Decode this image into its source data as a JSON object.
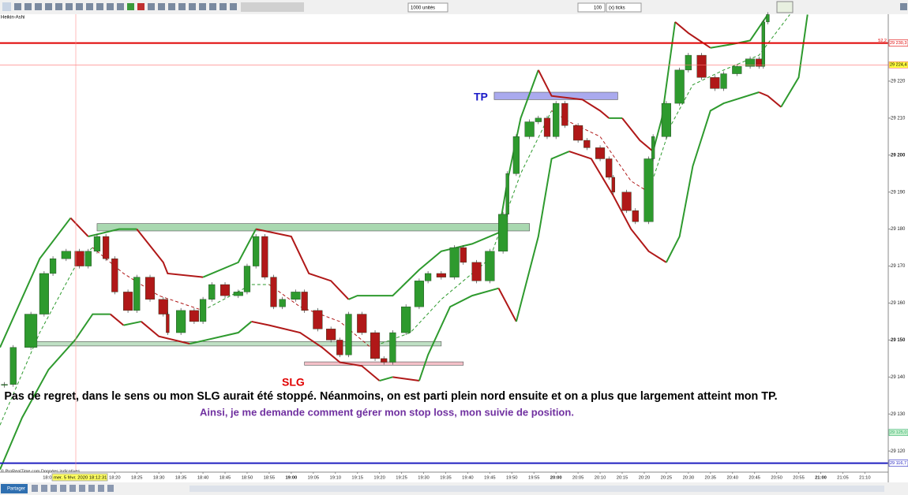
{
  "toolbar": {
    "units": "1000 unités",
    "ticks_value": "100",
    "ticks_unit": "(x) ticks"
  },
  "footer": {
    "share": "Partager"
  },
  "chart_data": {
    "type": "candlestick",
    "subtitle": "Heikin-Ashi",
    "source": "© ProRealTime.com Données indicatives",
    "cursor_label": "mer. 5 févr. 2020 18:12:31",
    "annotations": [
      "TP",
      "SLG",
      "Pas de regret, dans le sens ou mon SLG aurait été stoppé. Néanmoins, on est parti plein nord ensuite et on a plus que largement atteint mon TP.",
      "Ainsi, je me demande comment gérer mon stop loss, mon suivie de position."
    ],
    "annotation_colors": [
      "#1a1ac8",
      "#e00000",
      "#000000",
      "#7030a0"
    ],
    "up_color": "#2e9a2e",
    "down_color": "#b01818",
    "xlim": [
      -6,
      195.3
    ],
    "ylim": [
      29114.5,
      29238.1
    ],
    "xticks": [
      {
        "value": 5,
        "label": "18:05"
      },
      {
        "value": 20,
        "label": "18:20"
      },
      {
        "value": 25,
        "label": "18:25"
      },
      {
        "value": 30,
        "label": "18:30"
      },
      {
        "value": 35,
        "label": "18:35"
      },
      {
        "value": 40,
        "label": "18:40"
      },
      {
        "value": 45,
        "label": "18:45"
      },
      {
        "value": 50,
        "label": "18:50"
      },
      {
        "value": 55,
        "label": "18:55"
      },
      {
        "value": 60,
        "label": "19:00"
      },
      {
        "value": 65,
        "label": "19:05"
      },
      {
        "value": 70,
        "label": "19:10"
      },
      {
        "value": 75,
        "label": "19:15"
      },
      {
        "value": 80,
        "label": "19:20"
      },
      {
        "value": 85,
        "label": "19:25"
      },
      {
        "value": 90,
        "label": "19:30"
      },
      {
        "value": 95,
        "label": "19:35"
      },
      {
        "value": 100,
        "label": "19:40"
      },
      {
        "value": 105,
        "label": "19:45"
      },
      {
        "value": 110,
        "label": "19:50"
      },
      {
        "value": 115,
        "label": "19:55"
      },
      {
        "value": 120,
        "label": "20:00"
      },
      {
        "value": 125,
        "label": "20:05"
      },
      {
        "value": 130,
        "label": "20:10"
      },
      {
        "value": 135,
        "label": "20:15"
      },
      {
        "value": 140,
        "label": "20:20"
      },
      {
        "value": 145,
        "label": "20:25"
      },
      {
        "value": 150,
        "label": "20:30"
      },
      {
        "value": 155,
        "label": "20:35"
      },
      {
        "value": 160,
        "label": "20:40"
      },
      {
        "value": 165,
        "label": "20:45"
      },
      {
        "value": 170,
        "label": "20:50"
      },
      {
        "value": 175,
        "label": "20:55"
      },
      {
        "value": 180,
        "label": "21:00"
      },
      {
        "value": 185,
        "label": "21:05"
      },
      {
        "value": 190,
        "label": "21:10"
      }
    ],
    "yticks": [
      {
        "value": 29120,
        "label": "29 120"
      },
      {
        "value": 29130,
        "label": "29 130"
      },
      {
        "value": 29140,
        "label": "29 140"
      },
      {
        "value": 29150,
        "label": "29 150"
      },
      {
        "value": 29160,
        "label": "29 160"
      },
      {
        "value": 29170,
        "label": "29 170"
      },
      {
        "value": 29180,
        "label": "29 180"
      },
      {
        "value": 29190,
        "label": "29 190"
      },
      {
        "value": 29200,
        "label": "29 200"
      },
      {
        "value": 29210,
        "label": "29 210"
      },
      {
        "value": 29220,
        "label": "29 220"
      }
    ],
    "grid": false,
    "x": [
      -5,
      -3,
      1,
      4,
      6,
      9,
      12,
      14,
      16,
      18,
      20,
      23,
      25,
      28,
      31,
      32,
      35,
      38,
      40,
      42,
      45,
      48,
      50,
      52,
      54,
      56,
      58,
      61,
      63,
      66,
      69,
      71,
      73,
      76,
      79,
      81,
      83,
      86,
      89,
      91,
      94,
      97,
      99,
      102,
      105,
      108,
      109,
      111,
      114,
      116,
      118,
      120,
      122,
      125,
      127,
      130,
      132,
      133,
      136,
      138,
      141,
      142,
      145,
      148,
      150,
      153,
      156,
      158,
      161,
      164,
      166,
      167,
      168
    ],
    "values": [
      29138,
      29148,
      29157,
      29168,
      29172,
      29174,
      29170,
      29174,
      29178,
      29172,
      29163,
      29158,
      29167,
      29161,
      29157,
      29152,
      29158,
      29155,
      29161,
      29165,
      29162,
      29163,
      29170,
      29178,
      29167,
      29159,
      29161,
      29163,
      29158,
      29153,
      29150,
      29146,
      29157,
      29152,
      29145,
      29144,
      29152,
      29159,
      29166,
      29168,
      29167,
      29175,
      29171,
      29166,
      29174,
      29184,
      29195,
      29205,
      29209,
      29210,
      29205,
      29214,
      29208,
      29204,
      29202,
      29199,
      29194,
      29190,
      29185,
      29182,
      29199,
      29205,
      29214,
      29223,
      29227,
      29221,
      29218,
      29222,
      29224,
      29226,
      29224,
      29236,
      29238
    ],
    "bands": [
      {
        "x": [
          -6,
          3,
          10,
          14,
          21,
          25,
          31,
          32,
          40,
          48,
          52,
          60,
          64,
          69,
          73,
          75,
          83,
          89,
          94,
          101,
          107,
          109,
          112,
          116,
          119,
          126,
          130,
          132,
          135,
          139,
          142,
          144,
          147,
          150,
          155,
          160,
          164,
          168
        ],
        "values": [
          29148,
          29172,
          29183,
          29178,
          29180,
          29180,
          29171,
          29168,
          29167,
          29171,
          29180,
          29178,
          29168,
          29166,
          29161,
          29162,
          29162,
          29169,
          29174,
          29176,
          29179,
          29193,
          29210,
          29223,
          29216,
          29215,
          29212,
          29210,
          29210,
          29204,
          29201,
          29210,
          29236,
          29233,
          29229,
          29230,
          29231,
          29238
        ]
      },
      {
        "x": [
          -6,
          -1,
          5,
          11,
          15,
          19,
          22,
          26,
          30,
          37,
          48,
          51,
          55,
          62,
          67,
          71,
          76,
          80,
          83,
          89,
          91,
          96,
          101,
          107,
          111,
          116,
          119,
          123,
          128,
          133,
          137,
          141,
          145,
          148,
          151,
          155,
          158,
          166,
          168,
          171,
          175,
          177
        ],
        "values": [
          29115,
          29129,
          29142,
          29150,
          29157,
          29157,
          29154,
          29155,
          29151,
          29149,
          29152,
          29155,
          29154,
          29152,
          29148,
          29144,
          29143,
          29139,
          29140,
          29139,
          29146,
          29159,
          29162,
          29164,
          29155,
          29178,
          29199,
          29201,
          29199,
          29189,
          29180,
          29174,
          29171,
          29178,
          29197,
          29212,
          29214,
          29217,
          29216,
          29213,
          29221,
          29238
        ]
      },
      {
        "x": [
          -6,
          3,
          12,
          15,
          22,
          30,
          40,
          51,
          55,
          62,
          71,
          78,
          87,
          94,
          105,
          112,
          119,
          123,
          130,
          137,
          141,
          146,
          151,
          158,
          166,
          173
        ],
        "values": [
          29127,
          29152,
          29172,
          29175,
          29168,
          29162,
          29158,
          29165,
          29165,
          29159,
          29155,
          29148,
          29152,
          29161,
          29172,
          29195,
          29212,
          29209,
          29205,
          29193,
          29190,
          29208,
          29219,
          29223,
          29227,
          29238
        ],
        "dashed": true
      }
    ],
    "zones": [
      {
        "x": [
          16,
          114
        ],
        "y": [
          29179.5,
          29181.5
        ],
        "color": "#a9d8b0"
      },
      {
        "x": [
          1,
          94
        ],
        "y": [
          29148.4,
          29149.6
        ],
        "color": "#bfe0c4"
      },
      {
        "x": [
          106,
          134
        ],
        "y": [
          29215,
          29217
        ],
        "color": "#aaaaee"
      },
      {
        "x": [
          63,
          99
        ],
        "y": [
          29143.2,
          29144.1
        ],
        "color": "#f4c0c8"
      }
    ],
    "levels": [
      {
        "value": 29230.3,
        "label": "29 230,3",
        "tag": "52,2",
        "color": "#e00000",
        "box": "#ffffff",
        "width": 2
      },
      {
        "value": 29224.4,
        "label": "29 224,4",
        "color": "#ff7070",
        "box": "#ffff40",
        "width": 0.6
      },
      {
        "value": 29125,
        "label": "29 125,0",
        "color": "#3cb371",
        "box": "#c8f0d0",
        "width": 0
      },
      {
        "value": 29116.7,
        "label": "29 116,7",
        "color": "#2020c0",
        "box": "#ffffff",
        "width": 2
      }
    ]
  }
}
